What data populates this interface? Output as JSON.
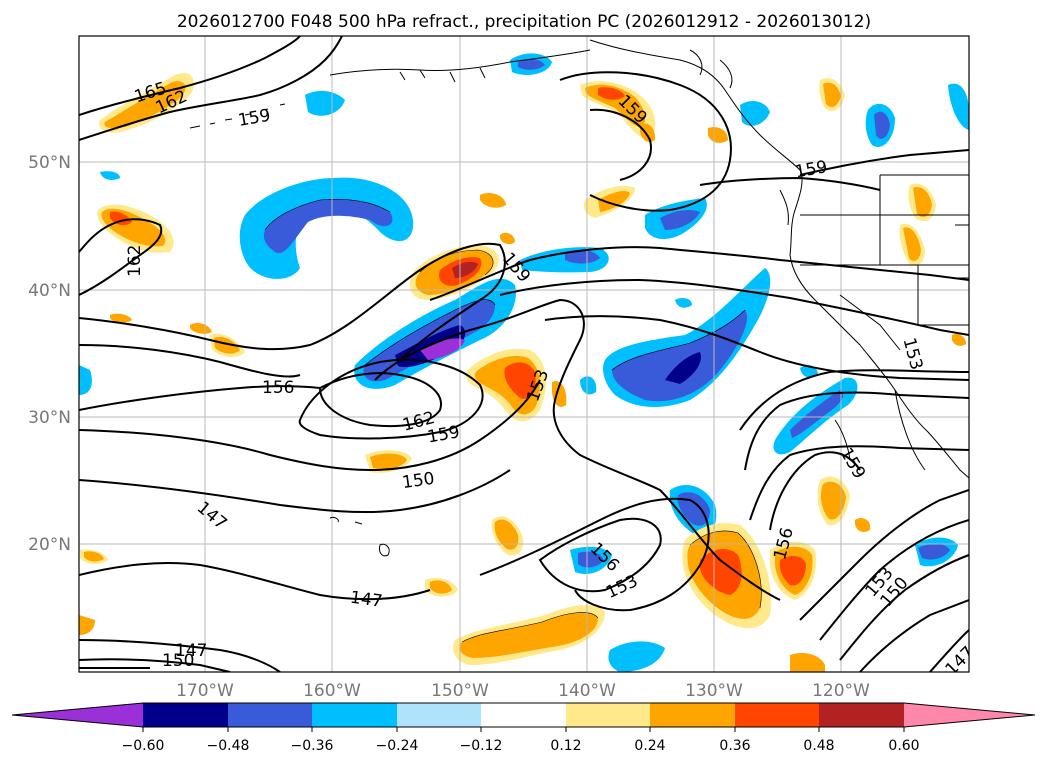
{
  "title": "2026012700 F048 500 hPa refract., precipitation PC (2026012912 - 2026013012)",
  "lat_labels": [
    "50°N",
    "40°N",
    "30°N",
    "20°N"
  ],
  "lon_labels": [
    "170°W",
    "160°W",
    "150°W",
    "140°W",
    "130°W",
    "120°W"
  ],
  "contour_labels": [
    "165",
    "162",
    "159",
    "159",
    "159",
    "162",
    "159",
    "156",
    "162",
    "159",
    "150",
    "153",
    "153",
    "147",
    "147",
    "150",
    "147",
    "156",
    "153",
    "156",
    "153",
    "150",
    "159",
    "147"
  ],
  "colorbar": {
    "ticks": [
      "−0.60",
      "−0.48",
      "−0.36",
      "−0.24",
      "−0.12",
      "0.12",
      "0.24",
      "0.36",
      "0.48",
      "0.60"
    ],
    "colors": [
      "#9b30d9",
      "#00008b",
      "#3a5bd9",
      "#00bfff",
      "#aee3fb",
      "#ffffff",
      "#ffe98a",
      "#ffa500",
      "#ff4500",
      "#b22222",
      "#ff88aa"
    ]
  }
}
